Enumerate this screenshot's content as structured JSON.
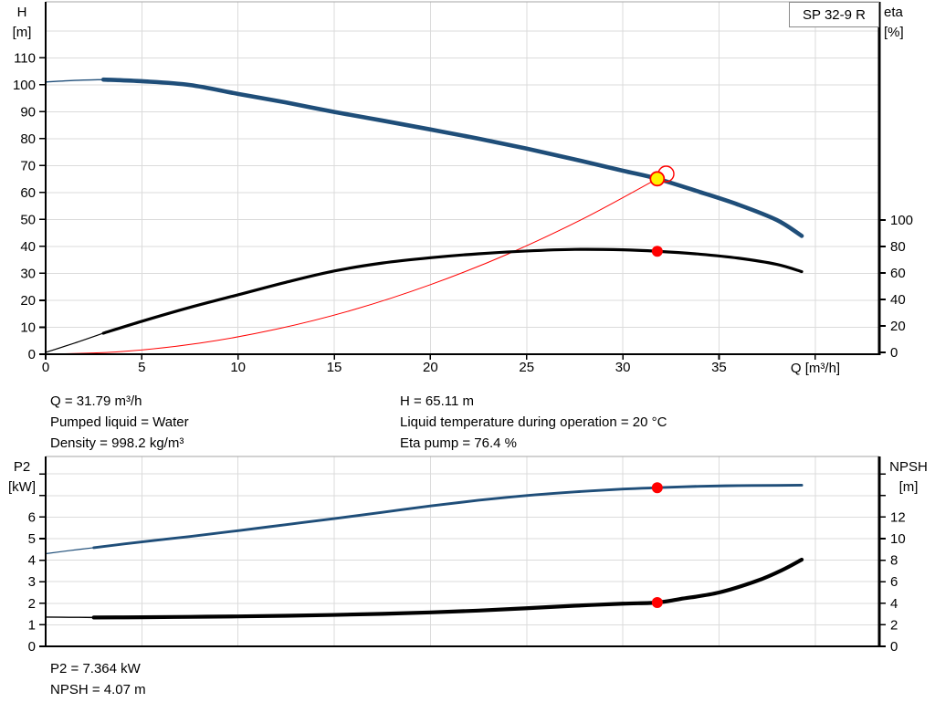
{
  "pump_label": "SP 32-9 R",
  "colors": {
    "curve_blue": "#1F4E79",
    "curve_black": "#000000",
    "curve_red": "#FF0000",
    "marker_yellow": "#FFF200",
    "grid": "#DBDBDB",
    "chart_border": "#A6A6A6",
    "axis": "#000000",
    "text": "#000000"
  },
  "axis_headers": {
    "top_left": [
      "H",
      "[m]"
    ],
    "top_right": [
      "eta",
      "[%]"
    ],
    "bottom_left": [
      "P2",
      "[kW]"
    ],
    "bottom_right": [
      "NPSH",
      "[m]"
    ]
  },
  "operating_point_info": {
    "col1": [
      "Q = 31.79 m³/h",
      "Pumped liquid = Water",
      "Density = 998.2 kg/m³"
    ],
    "col2": [
      "H = 65.11 m",
      "Liquid temperature during operation = 20 °C",
      "Eta pump = 76.4 %"
    ]
  },
  "power_info": [
    "P2 = 7.364 kW",
    "NPSH = 4.07 m"
  ],
  "chart_data": [
    {
      "type": "line",
      "x": {
        "label": "Q [m³/h]",
        "min": 0,
        "max": 43.3,
        "ticks": [
          0,
          5,
          10,
          15,
          20,
          25,
          30,
          35
        ],
        "unit_tick": 40,
        "grid": [
          5,
          10,
          15,
          20,
          25,
          30,
          35,
          40
        ]
      },
      "y_left": {
        "label": "H [m]",
        "min": 0,
        "max": 130,
        "ticks": [
          0,
          10,
          20,
          30,
          40,
          50,
          60,
          70,
          80,
          90,
          100,
          110
        ],
        "grid": [
          10,
          20,
          30,
          40,
          50,
          60,
          70,
          80,
          90,
          100,
          110,
          120
        ]
      },
      "y_right": {
        "label": "eta [%]",
        "min": 0,
        "max": 100,
        "ticks": [
          0,
          20,
          40,
          60,
          80,
          100
        ]
      },
      "series": [
        {
          "name": "system-curve",
          "axis": "left",
          "color": "red",
          "segments": [
            {
              "style": "hairline",
              "points": [
                [
                  0,
                  0
                ],
                [
                  4,
                  1.0
                ],
                [
                  8,
                  4.1
                ],
                [
                  12,
                  9.3
                ],
                [
                  16,
                  16.5
                ],
                [
                  20,
                  25.8
                ],
                [
                  24,
                  37.1
                ],
                [
                  28,
                  50.5
                ],
                [
                  31.79,
                  65.11
                ]
              ]
            }
          ]
        },
        {
          "name": "efficiency-curve",
          "axis": "right",
          "color": "black",
          "segments": [
            {
              "style": "thin",
              "points": [
                [
                  0,
                  0
                ],
                [
                  1.5,
                  7
                ],
                [
                  3,
                  14.5
                ]
              ]
            },
            {
              "style": "thick",
              "points": [
                [
                  3,
                  14.5
                ],
                [
                  5,
                  23.5
                ],
                [
                  7.5,
                  34
                ],
                [
                  10,
                  43.5
                ],
                [
                  12.5,
                  53
                ],
                [
                  15,
                  61.5
                ],
                [
                  17.5,
                  67.5
                ],
                [
                  20,
                  71.5
                ],
                [
                  22.5,
                  74.5
                ],
                [
                  25,
                  76.6
                ],
                [
                  27.5,
                  77.8
                ],
                [
                  30,
                  77.5
                ],
                [
                  31.79,
                  76.4
                ],
                [
                  34,
                  74.2
                ],
                [
                  36,
                  71.2
                ],
                [
                  38,
                  66.5
                ],
                [
                  39.3,
                  61
                ]
              ]
            }
          ]
        },
        {
          "name": "pump-curve",
          "axis": "left",
          "color": "blue",
          "segments": [
            {
              "style": "thin",
              "points": [
                [
                  0,
                  101
                ],
                [
                  1.5,
                  101.6
                ],
                [
                  3,
                  101.9
                ]
              ]
            },
            {
              "style": "thick",
              "points": [
                [
                  3,
                  101.9
                ],
                [
                  5,
                  101.3
                ],
                [
                  7.5,
                  99.9
                ],
                [
                  10,
                  96.6
                ],
                [
                  12.5,
                  93.4
                ],
                [
                  15,
                  89.9
                ],
                [
                  17.5,
                  86.7
                ],
                [
                  20,
                  83.4
                ],
                [
                  22.5,
                  80.0
                ],
                [
                  25,
                  76.3
                ],
                [
                  27.5,
                  72.3
                ],
                [
                  30,
                  68.1
                ],
                [
                  31.79,
                  65.11
                ],
                [
                  34,
                  60.2
                ],
                [
                  36,
                  55.5
                ],
                [
                  38,
                  49.8
                ],
                [
                  39.3,
                  43.9
                ]
              ]
            }
          ]
        }
      ],
      "markers": [
        {
          "name": "requested-duty-ring",
          "style": "red-ring",
          "axis": "left",
          "x": 32.25,
          "y": 66.9
        },
        {
          "name": "duty-point",
          "style": "yellow-dot",
          "axis": "left",
          "x": 31.79,
          "y": 65.11
        },
        {
          "name": "efficiency-point",
          "style": "red-dot",
          "axis": "right",
          "x": 31.79,
          "y": 76.4
        }
      ]
    },
    {
      "type": "line",
      "x": {
        "label": "",
        "min": 0,
        "max": 43.3,
        "ticks": [],
        "grid": [
          5,
          10,
          15,
          20,
          25,
          30,
          35,
          40
        ]
      },
      "y_left": {
        "label": "P2 [kW]",
        "min": 0,
        "max": 8.8,
        "ticks": [
          0,
          1,
          2,
          3,
          4,
          5,
          6
        ],
        "marks": [
          0,
          1,
          2,
          3,
          4,
          5,
          6,
          7,
          8
        ],
        "grid": [
          1,
          2,
          3,
          4,
          5,
          6,
          7,
          8
        ]
      },
      "y_right": {
        "label": "NPSH [m]",
        "min": 0,
        "max": 17.6,
        "ticks": [
          0,
          2,
          4,
          6,
          8,
          10,
          12
        ],
        "marks": [
          0,
          2,
          4,
          6,
          8,
          10,
          12,
          14,
          16
        ]
      },
      "series": [
        {
          "name": "p2-curve",
          "axis": "left",
          "color": "blue",
          "segments": [
            {
              "style": "thin",
              "points": [
                [
                  0,
                  4.3
                ],
                [
                  1.2,
                  4.44
                ],
                [
                  2.5,
                  4.58
                ]
              ]
            },
            {
              "style": "medium",
              "points": [
                [
                  2.5,
                  4.58
                ],
                [
                  5,
                  4.85
                ],
                [
                  7.5,
                  5.1
                ],
                [
                  10,
                  5.37
                ],
                [
                  12.5,
                  5.65
                ],
                [
                  15,
                  5.93
                ],
                [
                  17.5,
                  6.22
                ],
                [
                  20,
                  6.52
                ],
                [
                  22.5,
                  6.78
                ],
                [
                  25,
                  7.0
                ],
                [
                  27.5,
                  7.17
                ],
                [
                  30,
                  7.3
                ],
                [
                  31.79,
                  7.364
                ],
                [
                  34,
                  7.43
                ],
                [
                  36,
                  7.46
                ],
                [
                  38,
                  7.47
                ],
                [
                  39.3,
                  7.48
                ]
              ]
            }
          ]
        },
        {
          "name": "npsh-curve",
          "axis": "right",
          "color": "black",
          "segments": [
            {
              "style": "thin",
              "points": [
                [
                  0,
                  2.72
                ],
                [
                  1.2,
                  2.7
                ],
                [
                  2.5,
                  2.68
                ]
              ]
            },
            {
              "style": "thick",
              "points": [
                [
                  2.5,
                  2.68
                ],
                [
                  5,
                  2.7
                ],
                [
                  7.5,
                  2.74
                ],
                [
                  10,
                  2.78
                ],
                [
                  12.5,
                  2.84
                ],
                [
                  15,
                  2.92
                ],
                [
                  17.5,
                  3.02
                ],
                [
                  20,
                  3.15
                ],
                [
                  22.5,
                  3.32
                ],
                [
                  25,
                  3.54
                ],
                [
                  27.5,
                  3.77
                ],
                [
                  30,
                  3.96
                ],
                [
                  31.79,
                  4.07
                ],
                [
                  33,
                  4.4
                ],
                [
                  35,
                  5.0
                ],
                [
                  37,
                  6.1
                ],
                [
                  38.3,
                  7.1
                ],
                [
                  39.3,
                  8.05
                ]
              ]
            }
          ]
        }
      ],
      "markers": [
        {
          "name": "p2-point",
          "style": "red-dot",
          "axis": "left",
          "x": 31.79,
          "y": 7.364
        },
        {
          "name": "npsh-point",
          "style": "red-dot",
          "axis": "right",
          "x": 31.79,
          "y": 4.07
        }
      ]
    }
  ]
}
